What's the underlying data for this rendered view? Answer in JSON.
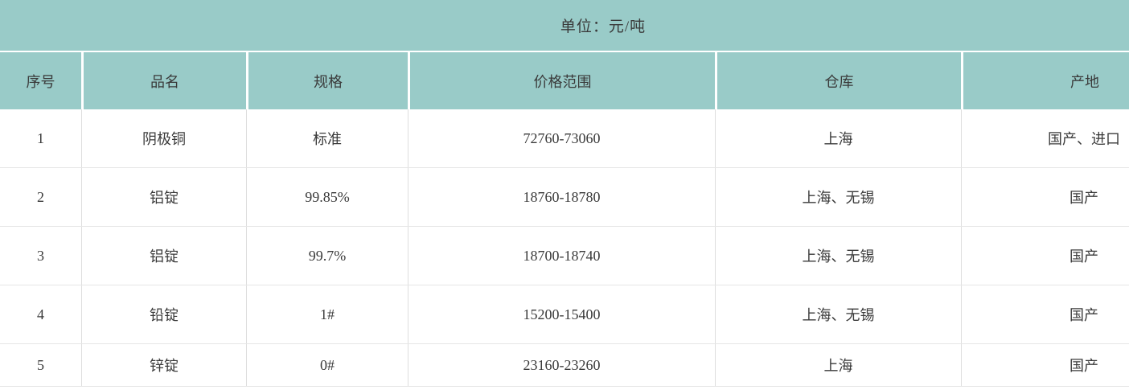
{
  "banner": {
    "text": "单位：元/吨"
  },
  "table": {
    "headers": [
      "序号",
      "品名",
      "规格",
      "价格范围",
      "仓库",
      "产地"
    ],
    "rows": [
      [
        "1",
        "阴极铜",
        "标准",
        "72760-73060",
        "上海",
        "国产、进口"
      ],
      [
        "2",
        "铝锭",
        "99.85%",
        "18760-18780",
        "上海、无锡",
        "国产"
      ],
      [
        "3",
        "铝锭",
        "99.7%",
        "18700-18740",
        "上海、无锡",
        "国产"
      ],
      [
        "4",
        "铅锭",
        "1#",
        "15200-15400",
        "上海、无锡",
        "国产"
      ],
      [
        "5",
        "锌锭",
        "0#",
        "23160-23260",
        "上海",
        "国产"
      ]
    ]
  },
  "chart_data": {
    "type": "table",
    "title": "单位：元/吨",
    "columns": [
      "序号",
      "品名",
      "规格",
      "价格范围",
      "仓库",
      "产地"
    ],
    "rows": [
      {
        "序号": 1,
        "品名": "阴极铜",
        "规格": "标准",
        "价格范围": "72760-73060",
        "价格低": 72760,
        "价格高": 73060,
        "仓库": "上海",
        "产地": "国产、进口"
      },
      {
        "序号": 2,
        "品名": "铝锭",
        "规格": "99.85%",
        "价格范围": "18760-18780",
        "价格低": 18760,
        "价格高": 18780,
        "仓库": "上海、无锡",
        "产地": "国产"
      },
      {
        "序号": 3,
        "品名": "铝锭",
        "规格": "99.7%",
        "价格范围": "18700-18740",
        "价格低": 18700,
        "价格高": 18740,
        "仓库": "上海、无锡",
        "产地": "国产"
      },
      {
        "序号": 4,
        "品名": "铅锭",
        "规格": "1#",
        "价格范围": "15200-15400",
        "价格低": 15200,
        "价格高": 15400,
        "仓库": "上海、无锡",
        "产地": "国产"
      },
      {
        "序号": 5,
        "品名": "锌锭",
        "规格": "0#",
        "价格范围": "23160-23260",
        "价格低": 23160,
        "价格高": 23260,
        "仓库": "上海",
        "产地": "国产"
      }
    ]
  },
  "colors": {
    "header_bg": "#99cbc8",
    "row_bg": "#ffffff",
    "header_divider": "#ffffff",
    "grid_line": "#dedede",
    "row_line": "#e6e6e6",
    "text": "#3a3a3a"
  }
}
